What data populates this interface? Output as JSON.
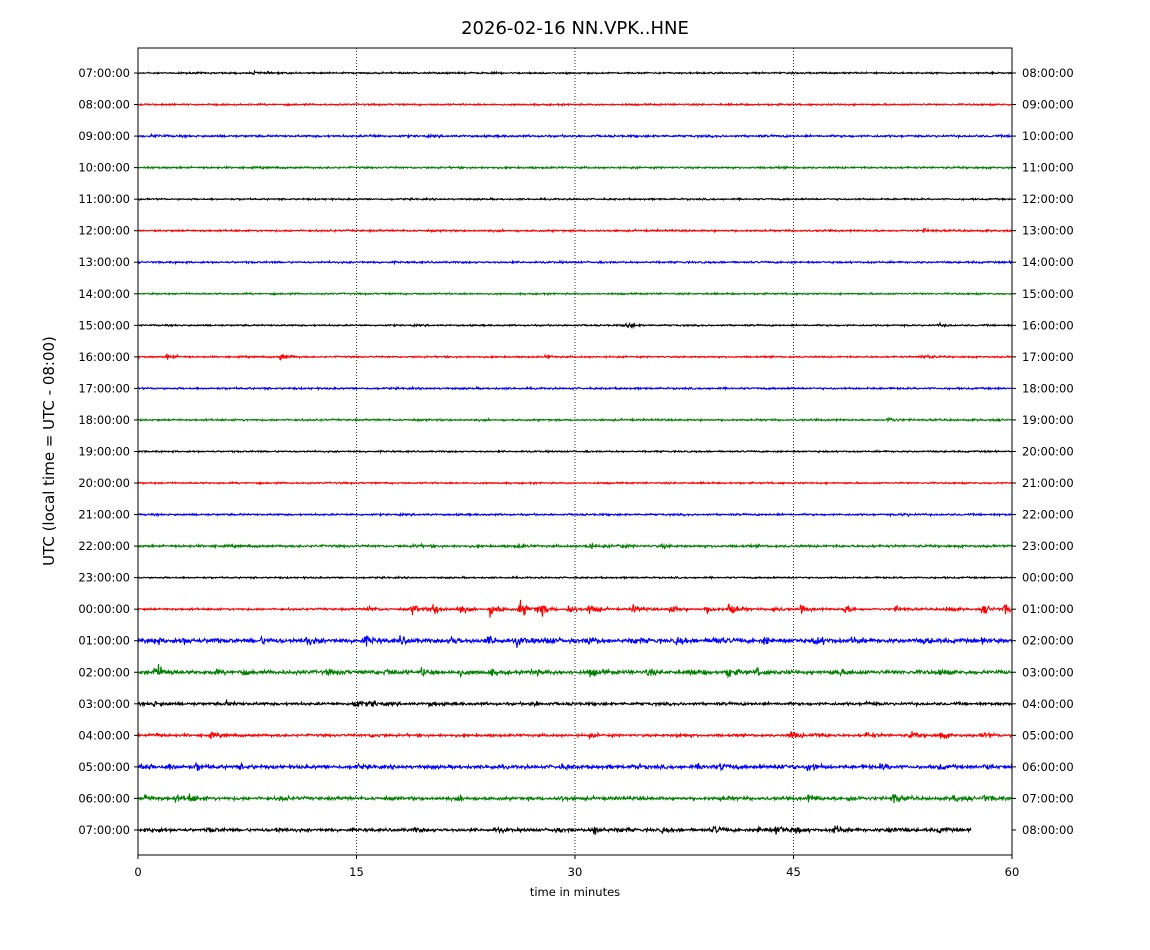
{
  "chart_data": {
    "type": "line",
    "title": "2026-02-16 NN.VPK..HNE",
    "xlabel": "time in minutes",
    "ylabel": "UTC (local time = UTC - 08:00)",
    "xlim": [
      0,
      60
    ],
    "x_ticks": [
      "0",
      "15",
      "30",
      "45",
      "60"
    ],
    "grid": "vertical dotted lines at 15, 30, 45",
    "color_cycle": [
      "#000000",
      "#ff0000",
      "#0000ff",
      "#008000"
    ],
    "series": [
      {
        "utc": "07:00:00",
        "local": "08:00:00",
        "color": "#000000",
        "noise": 0.35,
        "end_minute": 60,
        "events": [
          [
            8,
            0.5
          ]
        ]
      },
      {
        "utc": "08:00:00",
        "local": "09:00:00",
        "color": "#ff0000",
        "noise": 0.35,
        "end_minute": 60,
        "events": []
      },
      {
        "utc": "09:00:00",
        "local": "10:00:00",
        "color": "#0000ff",
        "noise": 0.45,
        "end_minute": 60,
        "events": [
          [
            1,
            0.6
          ],
          [
            16,
            0.4
          ]
        ]
      },
      {
        "utc": "10:00:00",
        "local": "11:00:00",
        "color": "#008000",
        "noise": 0.4,
        "end_minute": 60,
        "events": []
      },
      {
        "utc": "11:00:00",
        "local": "12:00:00",
        "color": "#000000",
        "noise": 0.35,
        "end_minute": 60,
        "events": []
      },
      {
        "utc": "12:00:00",
        "local": "13:00:00",
        "color": "#ff0000",
        "noise": 0.4,
        "end_minute": 60,
        "events": [
          [
            54,
            0.6
          ]
        ]
      },
      {
        "utc": "13:00:00",
        "local": "14:00:00",
        "color": "#0000ff",
        "noise": 0.4,
        "end_minute": 60,
        "events": []
      },
      {
        "utc": "14:00:00",
        "local": "15:00:00",
        "color": "#008000",
        "noise": 0.35,
        "end_minute": 60,
        "events": []
      },
      {
        "utc": "15:00:00",
        "local": "16:00:00",
        "color": "#000000",
        "noise": 0.35,
        "end_minute": 60,
        "events": [
          [
            33.5,
            1.4
          ],
          [
            55,
            0.6
          ]
        ]
      },
      {
        "utc": "16:00:00",
        "local": "17:00:00",
        "color": "#ff0000",
        "noise": 0.35,
        "end_minute": 60,
        "events": [
          [
            2,
            1.2
          ],
          [
            9.8,
            1.6
          ],
          [
            28,
            0.6
          ],
          [
            53.8,
            1.2
          ]
        ]
      },
      {
        "utc": "17:00:00",
        "local": "18:00:00",
        "color": "#0000ff",
        "noise": 0.4,
        "end_minute": 60,
        "events": []
      },
      {
        "utc": "18:00:00",
        "local": "19:00:00",
        "color": "#008000",
        "noise": 0.4,
        "end_minute": 60,
        "events": [
          [
            51.5,
            1.0
          ]
        ]
      },
      {
        "utc": "19:00:00",
        "local": "20:00:00",
        "color": "#000000",
        "noise": 0.35,
        "end_minute": 60,
        "events": []
      },
      {
        "utc": "20:00:00",
        "local": "21:00:00",
        "color": "#ff0000",
        "noise": 0.35,
        "end_minute": 60,
        "events": []
      },
      {
        "utc": "21:00:00",
        "local": "22:00:00",
        "color": "#0000ff",
        "noise": 0.4,
        "end_minute": 60,
        "events": [
          [
            52.5,
            0.6
          ]
        ]
      },
      {
        "utc": "22:00:00",
        "local": "23:00:00",
        "color": "#008000",
        "noise": 0.5,
        "end_minute": 60,
        "events": [
          [
            19,
            0.5
          ],
          [
            26,
            0.6
          ],
          [
            30.8,
            1.3
          ],
          [
            33,
            0.8
          ],
          [
            36,
            0.6
          ]
        ]
      },
      {
        "utc": "23:00:00",
        "local": "00:00:00",
        "color": "#000000",
        "noise": 0.35,
        "end_minute": 60,
        "events": []
      },
      {
        "utc": "00:00:00",
        "local": "01:00:00",
        "color": "#ff0000",
        "noise": 0.45,
        "end_minute": 60,
        "events": [
          [
            15.8,
            1.2
          ],
          [
            18.8,
            2.2
          ],
          [
            20.2,
            2.8
          ],
          [
            22,
            2.6
          ],
          [
            24.2,
            3.4
          ],
          [
            26.2,
            4.2
          ],
          [
            27.5,
            3.6
          ],
          [
            29.5,
            2.2
          ],
          [
            31,
            2.6
          ],
          [
            34,
            2.0
          ],
          [
            36.5,
            2.0
          ],
          [
            39,
            1.8
          ],
          [
            40.6,
            3.6
          ],
          [
            43.5,
            1.5
          ],
          [
            45.5,
            1.6
          ],
          [
            48.5,
            1.8
          ],
          [
            52,
            1.3
          ],
          [
            55.5,
            1.5
          ],
          [
            58,
            2.2
          ],
          [
            59.5,
            2.0
          ]
        ]
      },
      {
        "utc": "01:00:00",
        "local": "02:00:00",
        "color": "#0000ff",
        "noise": 0.9,
        "end_minute": 60,
        "events": [
          [
            1,
            1.5
          ],
          [
            3,
            1.3
          ],
          [
            5,
            1.0
          ],
          [
            8.5,
            1.2
          ],
          [
            11.5,
            1.8
          ],
          [
            15.5,
            1.8
          ],
          [
            18,
            1.5
          ],
          [
            21.5,
            1.5
          ],
          [
            24,
            1.8
          ],
          [
            26,
            1.8
          ],
          [
            28,
            1.3
          ],
          [
            31,
            1.5
          ],
          [
            34,
            1.4
          ],
          [
            37,
            1.3
          ],
          [
            39.5,
            1.6
          ],
          [
            43,
            1.5
          ],
          [
            46.5,
            2.2
          ],
          [
            49,
            1.3
          ],
          [
            54,
            1.0
          ],
          [
            58,
            0.9
          ]
        ]
      },
      {
        "utc": "02:00:00",
        "local": "03:00:00",
        "color": "#008000",
        "noise": 0.8,
        "end_minute": 60,
        "events": [
          [
            1,
            1.7
          ],
          [
            1.4,
            1.8
          ],
          [
            5,
            1.0
          ],
          [
            7,
            1.0
          ],
          [
            13,
            1.2
          ],
          [
            17,
            1.3
          ],
          [
            19.5,
            1.6
          ],
          [
            22,
            1.3
          ],
          [
            24.2,
            1.2
          ],
          [
            27,
            1.1
          ],
          [
            31,
            1.6
          ],
          [
            35,
            1.2
          ],
          [
            38,
            1.2
          ],
          [
            40.5,
            2.0
          ],
          [
            42.5,
            1.5
          ],
          [
            48,
            1.4
          ],
          [
            55,
            0.9
          ]
        ]
      },
      {
        "utc": "03:00:00",
        "local": "04:00:00",
        "color": "#000000",
        "noise": 0.6,
        "end_minute": 60,
        "events": [
          [
            1,
            1.2
          ],
          [
            6,
            0.9
          ],
          [
            14.8,
            2.0
          ],
          [
            16,
            1.2
          ],
          [
            20,
            0.8
          ],
          [
            27,
            0.8
          ],
          [
            50,
            0.7
          ]
        ]
      },
      {
        "utc": "04:00:00",
        "local": "05:00:00",
        "color": "#ff0000",
        "noise": 0.55,
        "end_minute": 60,
        "events": [
          [
            1,
            1.0
          ],
          [
            5,
            0.9
          ],
          [
            16,
            0.7
          ],
          [
            31,
            0.6
          ],
          [
            37,
            0.6
          ],
          [
            44.8,
            1.8
          ],
          [
            46.5,
            1.4
          ],
          [
            50,
            1.2
          ],
          [
            53,
            1.4
          ],
          [
            55,
            1.8
          ],
          [
            58,
            1.1
          ]
        ]
      },
      {
        "utc": "05:00:00",
        "local": "06:00:00",
        "color": "#0000ff",
        "noise": 0.75,
        "end_minute": 60,
        "events": [
          [
            0.2,
            1.8
          ],
          [
            2,
            1.3
          ],
          [
            4,
            1.5
          ],
          [
            7,
            0.9
          ],
          [
            15,
            0.7
          ],
          [
            24,
            0.7
          ],
          [
            29,
            0.6
          ],
          [
            34,
            0.8
          ],
          [
            38.5,
            1.1
          ],
          [
            40,
            1.4
          ],
          [
            44,
            1.2
          ],
          [
            46,
            2.2
          ],
          [
            51,
            1.1
          ],
          [
            55,
            0.9
          ],
          [
            58,
            1.0
          ]
        ]
      },
      {
        "utc": "06:00:00",
        "local": "07:00:00",
        "color": "#008000",
        "noise": 0.7,
        "end_minute": 60,
        "events": [
          [
            0.5,
            1.6
          ],
          [
            2.5,
            1.5
          ],
          [
            3.5,
            1.4
          ],
          [
            9.8,
            0.8
          ],
          [
            22,
            0.8
          ],
          [
            29,
            0.7
          ],
          [
            40,
            0.9
          ],
          [
            46,
            1.5
          ],
          [
            48.8,
            1.4
          ],
          [
            51.8,
            2.5
          ],
          [
            56,
            1.6
          ],
          [
            58,
            1.3
          ]
        ]
      },
      {
        "utc": "07:00:00",
        "local": "08:00:00",
        "color": "#000000",
        "noise": 0.65,
        "end_minute": 57.2,
        "events": [
          [
            1,
            0.9
          ],
          [
            4.8,
            1.0
          ],
          [
            9.5,
            0.8
          ],
          [
            19,
            0.9
          ],
          [
            24.5,
            1.0
          ],
          [
            28.5,
            0.8
          ],
          [
            31.2,
            2.2
          ],
          [
            33,
            1.1
          ],
          [
            36,
            1.0
          ],
          [
            39.5,
            1.4
          ],
          [
            42.5,
            1.6
          ],
          [
            43.8,
            2.4
          ],
          [
            45,
            1.5
          ],
          [
            47.8,
            2.5
          ],
          [
            51.5,
            1.4
          ],
          [
            55,
            1.0
          ]
        ]
      }
    ]
  }
}
